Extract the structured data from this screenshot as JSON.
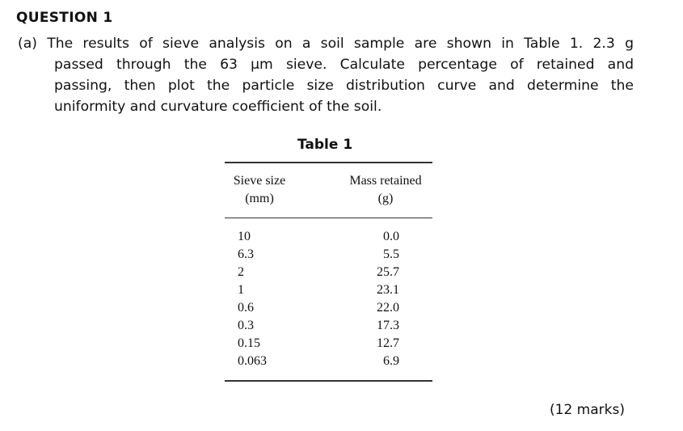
{
  "question": {
    "heading": "QUESTION 1",
    "part_label": "(a)",
    "lines": [
      "The results of sieve analysis on a soil sample are shown in Table 1. 2.3 g",
      "passed through the 63 μm sieve. Calculate percentage of retained and",
      "passing, then plot the particle size distribution curve and determine the",
      "uniformity and curvature coefficient of the soil."
    ],
    "marks": "(12 marks)"
  },
  "table": {
    "title": "Table 1",
    "headers": {
      "sieve_size": [
        "Sieve size",
        "(mm)"
      ],
      "mass_retained": [
        "Mass retained",
        "(g)"
      ]
    },
    "rows": [
      {
        "sieve_size": "10",
        "mass_retained": "0.0"
      },
      {
        "sieve_size": "6.3",
        "mass_retained": "5.5"
      },
      {
        "sieve_size": "2",
        "mass_retained": "25.7"
      },
      {
        "sieve_size": "1",
        "mass_retained": "23.1"
      },
      {
        "sieve_size": "0.6",
        "mass_retained": "22.0"
      },
      {
        "sieve_size": "0.3",
        "mass_retained": "17.3"
      },
      {
        "sieve_size": "0.15",
        "mass_retained": "12.7"
      },
      {
        "sieve_size": "0.063",
        "mass_retained": "6.9"
      }
    ]
  }
}
